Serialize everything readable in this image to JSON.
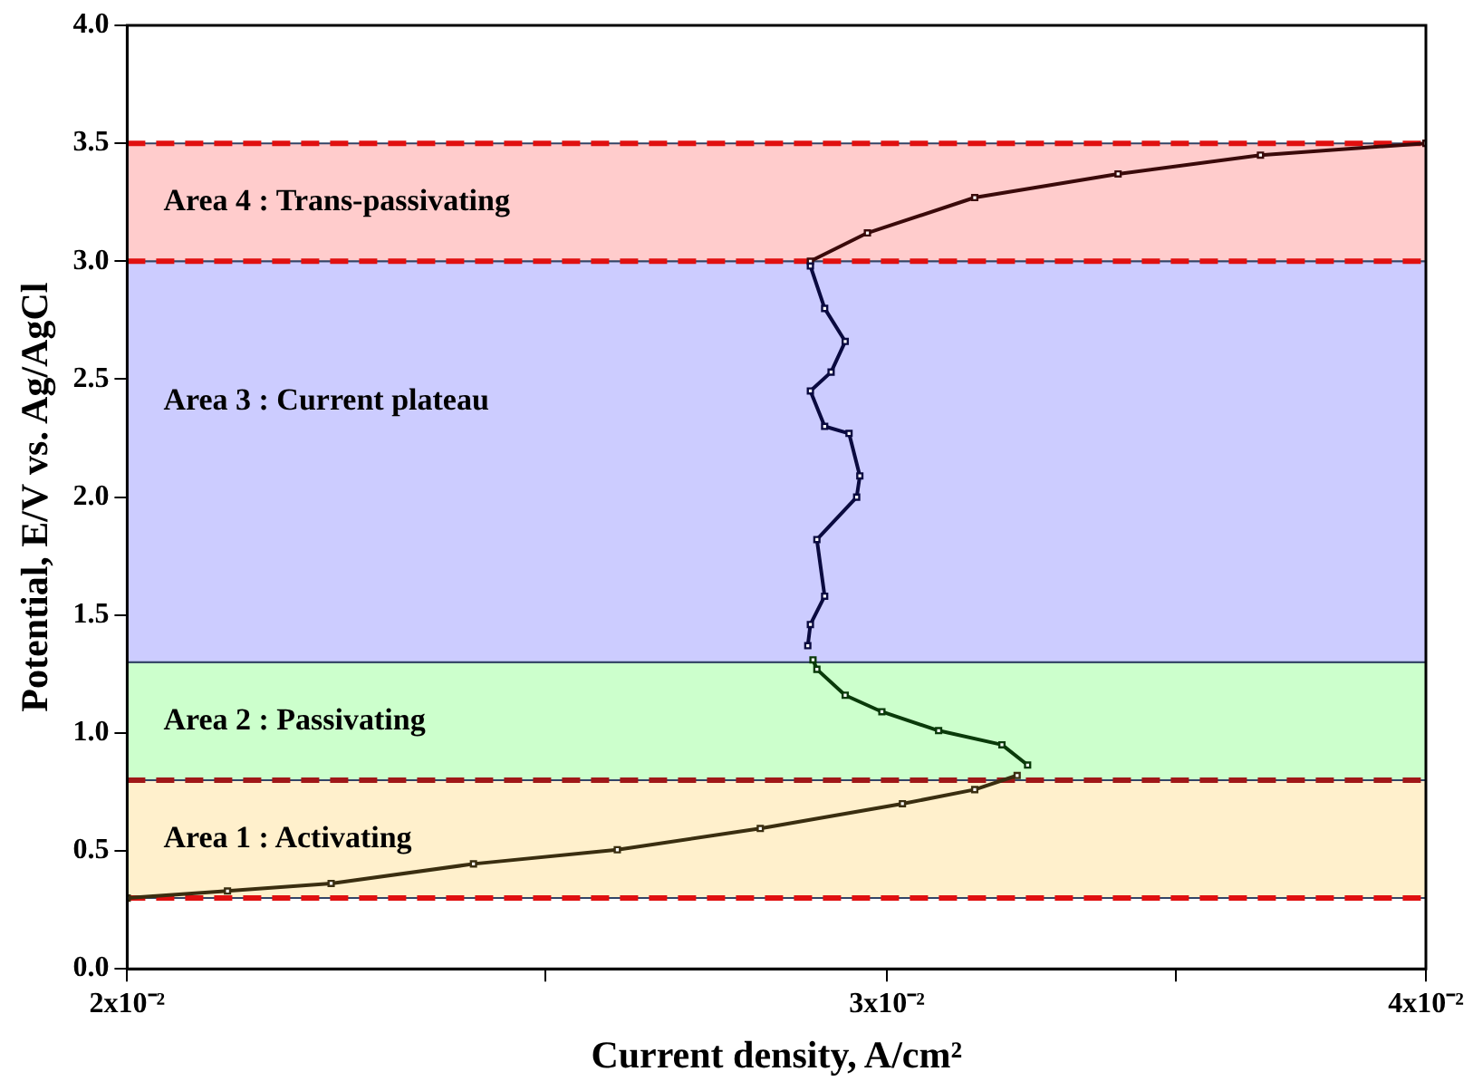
{
  "chart_data": {
    "type": "line",
    "xlabel": "Current density, A/cm²",
    "ylabel": "Potential, E/V vs. Ag/AgCl",
    "log": "x",
    "xlim": [
      0.02,
      0.04
    ],
    "xticks": [
      {
        "value": 0.02,
        "label": "2x10⁻²"
      },
      {
        "value": 0.025,
        "label": null
      },
      {
        "value": 0.03,
        "label": "3x10⁻²"
      },
      {
        "value": 0.035,
        "label": null
      },
      {
        "value": 0.04,
        "label": "4x10⁻²"
      }
    ],
    "ylim": [
      0,
      4
    ],
    "yticks": [
      {
        "value": 0,
        "label": "0.0"
      },
      0.5,
      {
        "value": 1,
        "label": "1.0"
      },
      1.5,
      {
        "value": 2,
        "label": "2.0"
      },
      2.5,
      {
        "value": 3,
        "label": "3.0"
      },
      3.5,
      {
        "value": 4,
        "label": "4.0"
      }
    ],
    "grid": false,
    "legend": false,
    "marker": "square",
    "line_style": "solid",
    "series": [
      {
        "color": "#3a2e10",
        "x": [
          0.02,
          0.0211,
          0.0223,
          0.02406,
          0.02598,
          0.02804,
          0.03025,
          0.03144,
          0.03216
        ],
        "values": [
          0.3,
          0.33,
          0.362,
          0.445,
          0.505,
          0.595,
          0.7,
          0.76,
          0.82
        ]
      },
      {
        "color": "#0a3a0a",
        "x": [
          0.03234,
          0.0319,
          0.03084,
          0.02992,
          0.02934,
          0.0289,
          0.02884
        ],
        "values": [
          0.864,
          0.95,
          1.01,
          1.09,
          1.16,
          1.27,
          1.31
        ]
      },
      {
        "color": "#0a0a40",
        "x": [
          0.02876,
          0.0288,
          0.02902,
          0.0289,
          0.02952,
          0.02957,
          0.0294,
          0.02902,
          0.0288,
          0.02912,
          0.02934,
          0.02902,
          0.0288
        ],
        "values": [
          1.37,
          1.46,
          1.58,
          1.82,
          2.0,
          2.09,
          2.27,
          2.3,
          2.45,
          2.53,
          2.66,
          2.8,
          2.98
        ]
      },
      {
        "color": "#3a0a0a",
        "x": [
          0.0288,
          0.02969,
          0.03144,
          0.03394,
          0.03662,
          0.04
        ],
        "values": [
          3.0,
          3.12,
          3.27,
          3.37,
          3.45,
          3.5
        ]
      }
    ],
    "bands": [
      {
        "axis": "y",
        "from": 0.3,
        "to": 0.8,
        "label": "Area 1 : Activating",
        "color": "#fff0cc"
      },
      {
        "axis": "y",
        "from": 0.8,
        "to": 1.3,
        "label": "Area 2 : Passivating",
        "color": "#ccffcc"
      },
      {
        "axis": "y",
        "from": 1.3,
        "to": 3.0,
        "label": "Area 3 : Current plateau",
        "color": "#ccccff"
      },
      {
        "axis": "y",
        "from": 3.0,
        "to": 3.5,
        "label": "Area 4 : Trans-passivating",
        "color": "#ffcccc"
      }
    ],
    "ref_lines": [
      {
        "axis": "y",
        "value": 0.3,
        "color": "#e01010",
        "line_style": "dashed"
      },
      {
        "axis": "y",
        "value": 0.8,
        "color": "#a01818",
        "line_style": "dashed"
      },
      {
        "axis": "y",
        "value": 3.0,
        "color": "#e01010",
        "line_style": "dashed"
      },
      {
        "axis": "y",
        "value": 3.5,
        "color": "#e01010",
        "line_style": "dashed"
      }
    ]
  }
}
